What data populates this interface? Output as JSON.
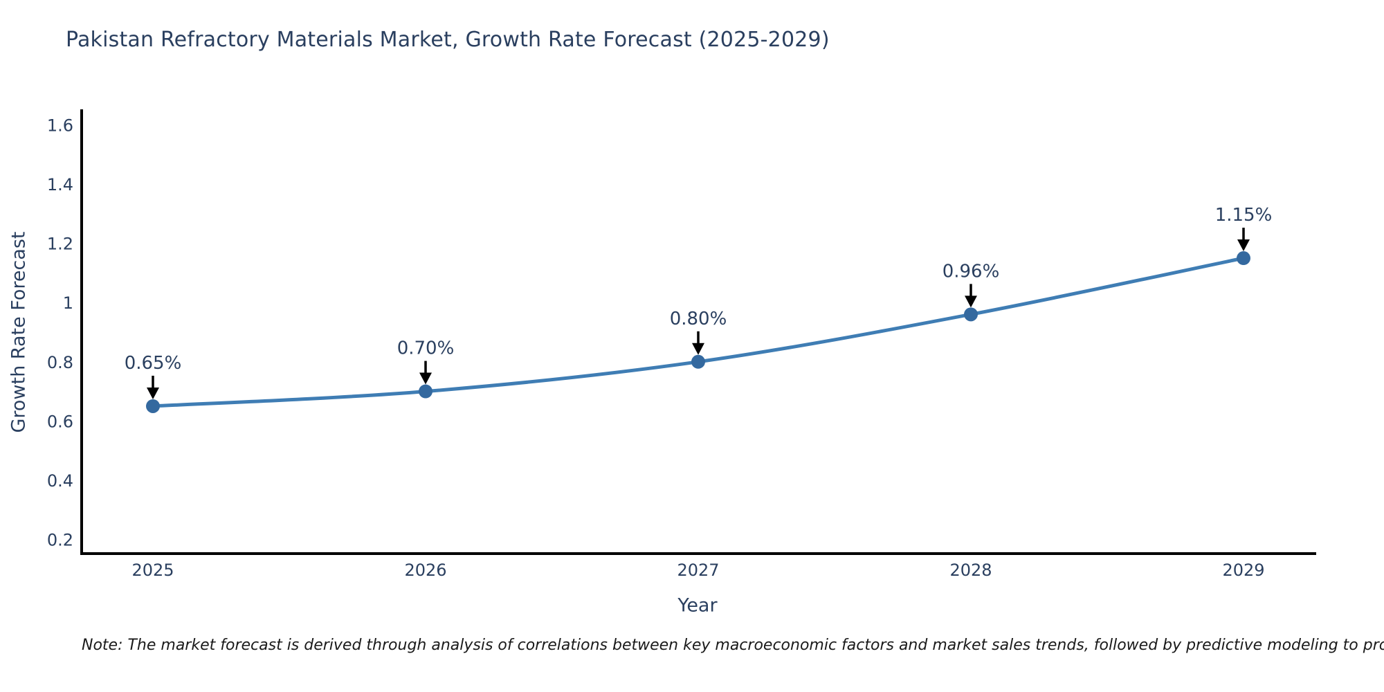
{
  "page": {
    "note": "Note: The market forecast is derived through analysis of correlations between key macroeconomic factors and market sales trends, followed by predictive modeling to project future sales"
  },
  "chart_data": {
    "type": "line",
    "title": "Pakistan Refractory Materials Market, Growth Rate Forecast (2025-2029)",
    "xlabel": "Year",
    "ylabel": "Growth Rate Forecast",
    "x": [
      "2025",
      "2026",
      "2027",
      "2028",
      "2029"
    ],
    "series": [
      {
        "name": "Growth Rate Forecast",
        "values": [
          0.65,
          0.7,
          0.8,
          0.96,
          1.15
        ]
      }
    ],
    "point_labels": [
      "0.65%",
      "0.70%",
      "0.80%",
      "0.96%",
      "1.15%"
    ],
    "yticks": [
      0.2,
      0.4,
      0.6,
      0.8,
      1,
      1.2,
      1.4,
      1.6
    ],
    "ylim": [
      0.152,
      1.648
    ],
    "grid": false,
    "legend": "none",
    "line_shape": "spline",
    "annotation_style": "black-down-arrow",
    "colors": {
      "line": "#3f7db4",
      "marker": "#34699f",
      "axis": "#000000",
      "tick_text": "#2a3f5f",
      "title_text": "#2a3f5f",
      "annotation_text": "#2a3f5f",
      "annotation_arrow": "#000000",
      "note_text": "#1a1a1a",
      "background": "#ffffff"
    }
  }
}
